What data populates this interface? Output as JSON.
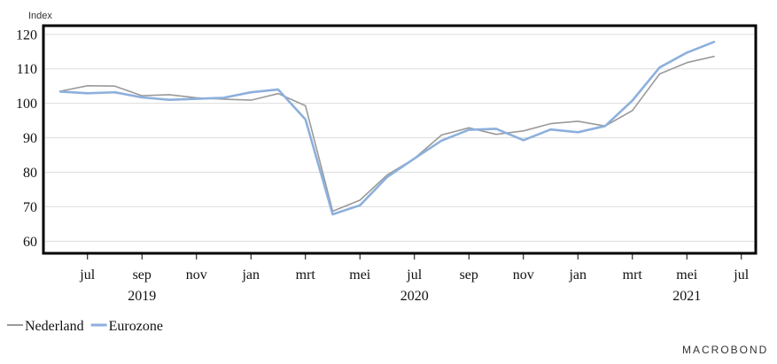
{
  "chart_data": {
    "type": "line",
    "ylabel": "Index",
    "ylim": [
      57,
      122
    ],
    "yticks": [
      60,
      70,
      80,
      90,
      100,
      110,
      120
    ],
    "grid": true,
    "x": [
      "2019-06",
      "2019-07",
      "2019-08",
      "2019-09",
      "2019-10",
      "2019-11",
      "2019-12",
      "2020-01",
      "2020-02",
      "2020-03",
      "2020-04",
      "2020-05",
      "2020-06",
      "2020-07",
      "2020-08",
      "2020-09",
      "2020-10",
      "2020-11",
      "2020-12",
      "2021-01",
      "2021-02",
      "2021-03",
      "2021-04",
      "2021-05",
      "2021-06"
    ],
    "month_ticks": [
      {
        "label": "jul",
        "date": "2019-07"
      },
      {
        "label": "sep",
        "date": "2019-09"
      },
      {
        "label": "nov",
        "date": "2019-11"
      },
      {
        "label": "jan",
        "date": "2020-01"
      },
      {
        "label": "mrt",
        "date": "2020-03"
      },
      {
        "label": "mei",
        "date": "2020-05"
      },
      {
        "label": "jul",
        "date": "2020-07"
      },
      {
        "label": "sep",
        "date": "2020-09"
      },
      {
        "label": "nov",
        "date": "2020-11"
      },
      {
        "label": "jan",
        "date": "2021-01"
      },
      {
        "label": "mrt",
        "date": "2021-03"
      },
      {
        "label": "mei",
        "date": "2021-05"
      },
      {
        "label": "jul",
        "date": "2021-07"
      }
    ],
    "year_labels": [
      {
        "label": "2019",
        "date": "2019-09"
      },
      {
        "label": "2020",
        "date": "2020-07"
      },
      {
        "label": "2021",
        "date": "2021-05"
      }
    ],
    "legend_position": "bottom-left",
    "series": [
      {
        "name": "Nederland",
        "color": "#9a9a9a",
        "values": [
          103.5,
          105.1,
          105.0,
          102.2,
          102.5,
          101.6,
          101.2,
          100.9,
          102.8,
          99.3,
          68.7,
          71.9,
          79.2,
          84.0,
          90.8,
          92.9,
          91.0,
          92.0,
          94.1,
          94.8,
          93.4,
          97.9,
          108.5,
          111.8,
          113.6
        ]
      },
      {
        "name": "Eurozone",
        "color": "#8db0dc",
        "values": [
          103.4,
          102.9,
          103.2,
          101.7,
          101.0,
          101.3,
          101.6,
          103.2,
          104.0,
          95.3,
          67.8,
          70.4,
          78.6,
          84.0,
          89.2,
          92.3,
          92.6,
          89.3,
          92.4,
          91.6,
          93.4,
          100.8,
          110.4,
          114.7,
          117.8
        ]
      }
    ]
  },
  "branding": {
    "logo_text": "MACROBOND"
  }
}
